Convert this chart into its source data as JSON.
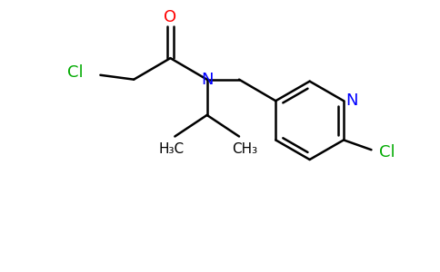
{
  "background_color": "#ffffff",
  "atom_colors": {
    "C": "#000000",
    "N": "#0000ff",
    "O": "#ff0000",
    "Cl": "#00aa00"
  },
  "bond_color": "#000000",
  "bond_width": 1.8,
  "figsize": [
    4.84,
    3.0
  ],
  "dpi": 100
}
